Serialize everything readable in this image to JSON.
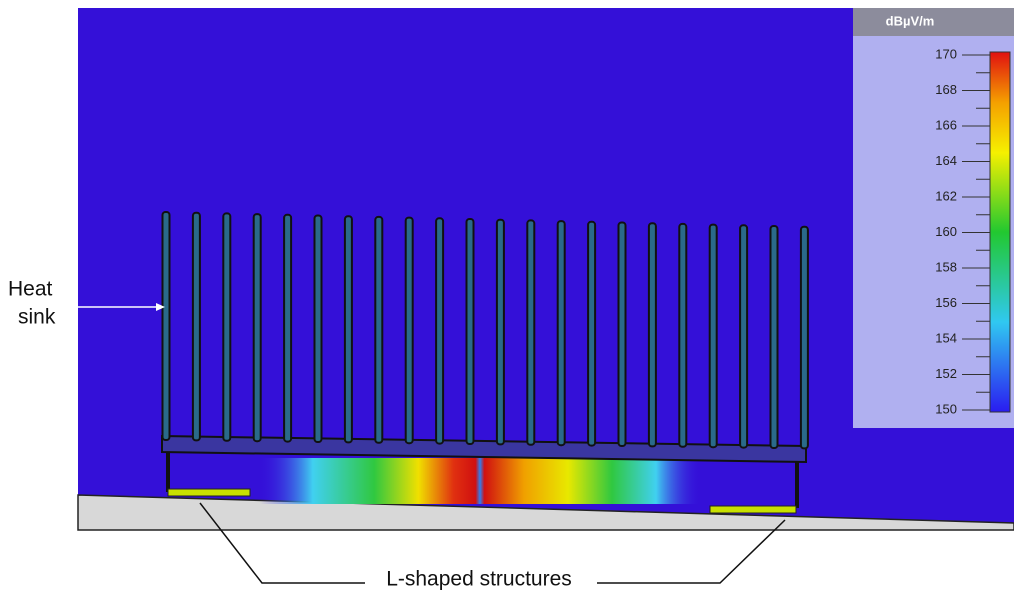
{
  "colorbar": {
    "unit": "dBµV/m",
    "range": [
      150,
      170
    ],
    "ticks": [
      150,
      152,
      154,
      156,
      158,
      160,
      162,
      164,
      166,
      168,
      170
    ]
  },
  "labels": {
    "heat_sink": [
      "Heat",
      "sink"
    ],
    "l_shaped": "L-shaped structures"
  }
}
